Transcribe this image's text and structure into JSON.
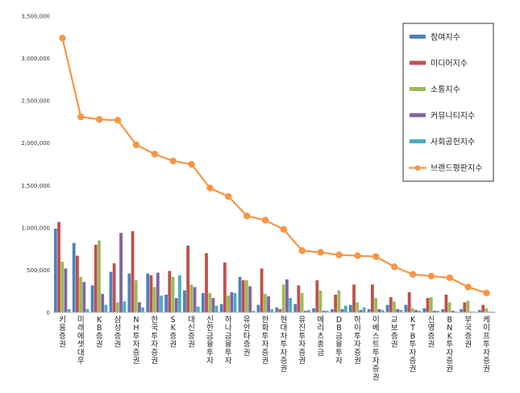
{
  "chart_data": {
    "type": "bar",
    "ylim": [
      0,
      3500000
    ],
    "yticks": [
      "0",
      "500,000",
      "1,000,000",
      "1,500,000",
      "2,000,000",
      "2,500,000",
      "3,000,000",
      "3,500,000"
    ],
    "ytick_values": [
      0,
      500000,
      1000000,
      1500000,
      2000000,
      2500000,
      3000000,
      3500000
    ],
    "grid": false,
    "legend_position": "top-right",
    "categories": [
      "키움증권",
      "미래에셋대우",
      "KB증권",
      "삼성증권",
      "NH투자증권",
      "한국투자증권",
      "SK증권",
      "대신증권",
      "신한금융투자",
      "하나금융투자",
      "유안타증권",
      "한화투자증권",
      "현대차투자증권",
      "유진투자증권",
      "메리츠종금",
      "DB금융투자",
      "하이투자증권",
      "이베스트투자증권",
      "교보증권",
      "KTB투자증권",
      "신영증권",
      "BNK투자증권",
      "부국증권",
      "케이프투자증권"
    ],
    "series": [
      {
        "name": "참여지수",
        "type": "bar",
        "color": "#4f81bd",
        "values": [
          990000,
          820000,
          320000,
          480000,
          460000,
          460000,
          210000,
          260000,
          230000,
          100000,
          420000,
          90000,
          60000,
          100000,
          50000,
          40000,
          90000,
          40000,
          90000,
          90000,
          50000,
          40000,
          40000,
          30000
        ]
      },
      {
        "name": "미디어지수",
        "type": "bar",
        "color": "#c0504d",
        "values": [
          1070000,
          670000,
          800000,
          580000,
          960000,
          440000,
          490000,
          790000,
          700000,
          590000,
          380000,
          520000,
          40000,
          320000,
          380000,
          210000,
          330000,
          330000,
          180000,
          240000,
          170000,
          210000,
          120000,
          90000
        ]
      },
      {
        "name": "소통지수",
        "type": "bar",
        "color": "#9bbb59",
        "values": [
          600000,
          420000,
          850000,
          120000,
          380000,
          300000,
          420000,
          330000,
          230000,
          200000,
          380000,
          220000,
          330000,
          230000,
          260000,
          260000,
          120000,
          170000,
          130000,
          50000,
          180000,
          120000,
          140000,
          50000
        ]
      },
      {
        "name": "커뮤니티지수",
        "type": "bar",
        "color": "#8064a2",
        "values": [
          520000,
          360000,
          220000,
          940000,
          120000,
          470000,
          170000,
          300000,
          170000,
          240000,
          310000,
          190000,
          390000,
          20000,
          20000,
          40000,
          30000,
          40000,
          40000,
          30000,
          20000,
          20000,
          10000,
          10000
        ]
      },
      {
        "name": "사회공헌지수",
        "type": "bar",
        "color": "#4bacc6",
        "values": [
          40000,
          40000,
          90000,
          130000,
          60000,
          200000,
          440000,
          70000,
          80000,
          230000,
          20000,
          40000,
          170000,
          30000,
          20000,
          80000,
          60000,
          30000,
          30000,
          20000,
          20000,
          10000,
          10000,
          10000
        ]
      },
      {
        "name": "브랜드평판지수",
        "type": "line",
        "color": "#f79646",
        "values": [
          3240000,
          2310000,
          2280000,
          2270000,
          1980000,
          1870000,
          1790000,
          1750000,
          1470000,
          1370000,
          1140000,
          1090000,
          980000,
          730000,
          710000,
          680000,
          670000,
          660000,
          540000,
          450000,
          430000,
          410000,
          300000,
          230000
        ]
      }
    ]
  }
}
